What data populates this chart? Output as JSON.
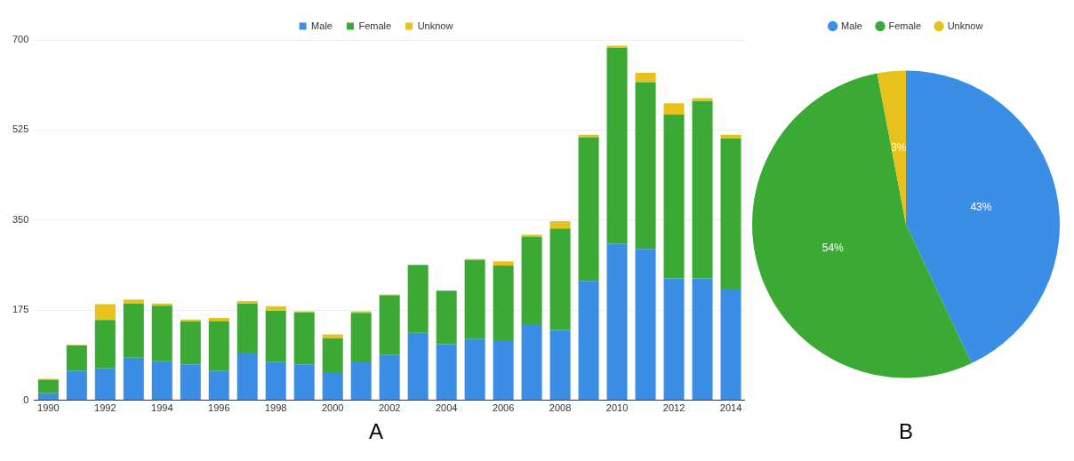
{
  "chart_data": [
    {
      "type": "bar",
      "stacked": true,
      "categories": [
        "1990",
        null,
        "1992",
        null,
        "1994",
        null,
        "1996",
        null,
        "1998",
        null,
        "2000",
        null,
        "2002",
        null,
        "2004",
        null,
        "2006",
        null,
        "2008",
        null,
        "2010",
        null,
        "2012",
        null,
        "2014"
      ],
      "series": [
        {
          "name": "Male",
          "color": "#3a8ee6",
          "values": [
            14,
            57,
            62,
            83,
            76,
            70,
            57,
            91,
            75,
            70,
            55,
            74,
            88,
            131,
            109,
            119,
            117,
            148,
            137,
            232,
            304,
            294,
            237,
            237,
            217
          ]
        },
        {
          "name": "Female",
          "color": "#3aaa35",
          "values": [
            26,
            50,
            94,
            105,
            108,
            83,
            97,
            97,
            99,
            101,
            66,
            96,
            116,
            132,
            104,
            154,
            145,
            170,
            197,
            279,
            381,
            324,
            318,
            344,
            292
          ]
        },
        {
          "name": "Unknow",
          "color": "#e8c21a",
          "values": [
            2,
            1,
            31,
            8,
            4,
            4,
            6,
            5,
            9,
            2,
            7,
            3,
            2,
            0,
            0,
            2,
            8,
            4,
            14,
            5,
            4,
            18,
            22,
            6,
            7
          ]
        }
      ],
      "ylim": [
        0,
        700
      ],
      "yticks": [
        0,
        175,
        350,
        525,
        700
      ],
      "grid": "y",
      "legend": "top",
      "annotations": [
        "A"
      ]
    },
    {
      "type": "pie",
      "categories": [
        "Male",
        "Female",
        "Unknow"
      ],
      "values": [
        43,
        54,
        3
      ],
      "colors": [
        "#3a8ee6",
        "#3aaa35",
        "#e8c21a"
      ],
      "value_labels": [
        "43%",
        "54%",
        "3%"
      ],
      "legend": "top",
      "annotations": [
        "B"
      ]
    }
  ]
}
